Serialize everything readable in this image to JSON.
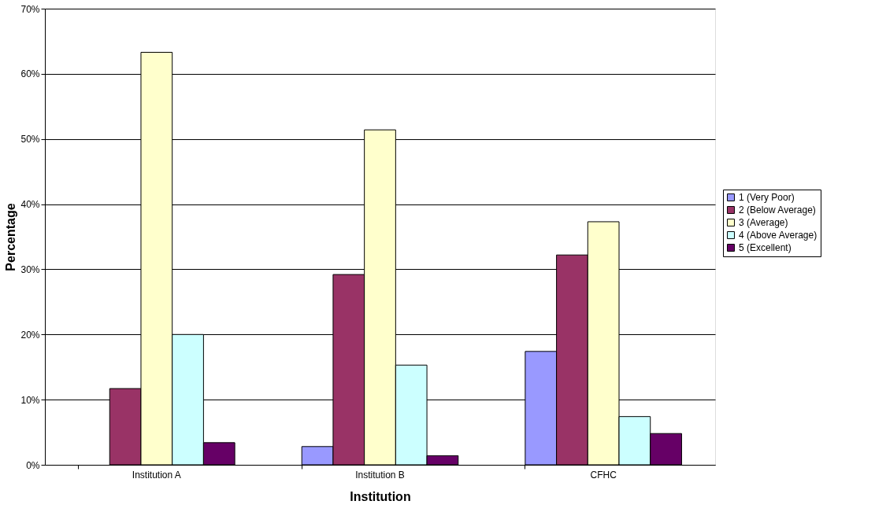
{
  "chart_data": {
    "type": "bar",
    "xlabel": "Institution",
    "ylabel": "Percentage",
    "categories": [
      "Institution A",
      "Institution B",
      "CFHC"
    ],
    "series": [
      {
        "name": "1 (Very Poor)",
        "color": "#9999ff",
        "values": [
          null,
          2.8,
          17.4
        ]
      },
      {
        "name": "2 (Below Average)",
        "color": "#993366",
        "values": [
          11.7,
          29.2,
          32.2
        ]
      },
      {
        "name": "3 (Average)",
        "color": "#ffffcc",
        "values": [
          63.3,
          51.4,
          37.3
        ]
      },
      {
        "name": "4 (Above Average)",
        "color": "#ccffff",
        "values": [
          20.0,
          15.3,
          7.4
        ]
      },
      {
        "name": "5 (Excellent)",
        "color": "#660066",
        "values": [
          3.4,
          1.4,
          4.8
        ]
      }
    ],
    "ylim": [
      0,
      70
    ],
    "yticks": [
      {
        "value": 0,
        "label": "0%"
      },
      {
        "value": 10,
        "label": "10%"
      },
      {
        "value": 20,
        "label": "20%"
      },
      {
        "value": 30,
        "label": "30%"
      },
      {
        "value": 40,
        "label": "40%"
      },
      {
        "value": 50,
        "label": "50%"
      },
      {
        "value": 60,
        "label": "60%"
      },
      {
        "value": 70,
        "label": "70%"
      }
    ],
    "grid": "y",
    "legend": "right"
  }
}
